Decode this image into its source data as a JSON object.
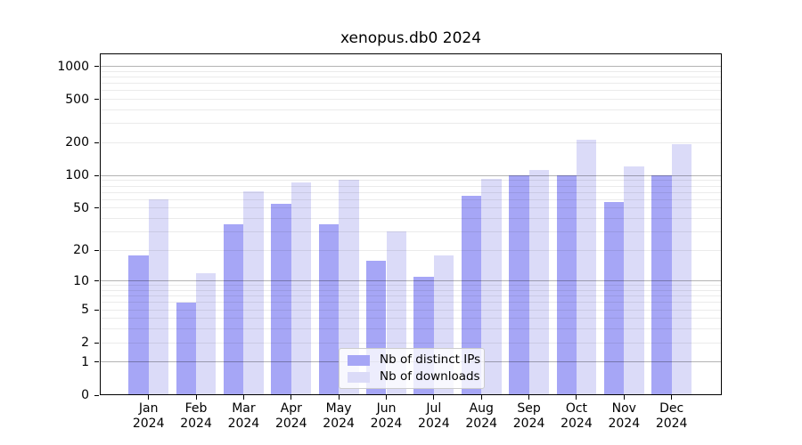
{
  "title": "xenopus.db0 2024",
  "colors": {
    "ips_bar": "#a6a6f6",
    "downloads_bar": "#dbdbf8",
    "grid_major": "#b3b3b3",
    "grid_minor": "#ebebeb",
    "axis": "#000000",
    "legend_border": "#cccccc"
  },
  "legend": {
    "items": [
      {
        "label": "Nb of distinct IPs",
        "series": "ips"
      },
      {
        "label": "Nb of downloads",
        "series": "downloads"
      }
    ]
  },
  "chart_data": {
    "type": "bar",
    "title": "xenopus.db0 2024",
    "categories": [
      "Jan",
      "Feb",
      "Mar",
      "Apr",
      "May",
      "Jun",
      "Jul",
      "Aug",
      "Sep",
      "Oct",
      "Nov",
      "Dec"
    ],
    "year_label": "2024",
    "series": [
      {
        "name": "Nb of distinct IPs",
        "values": [
          18,
          6,
          35,
          55,
          35,
          16,
          11,
          65,
          100,
          100,
          57,
          100
        ]
      },
      {
        "name": "Nb of downloads",
        "values": [
          60,
          12,
          72,
          86,
          92,
          30,
          18,
          93,
          113,
          215,
          121,
          193
        ]
      }
    ],
    "xlabel": "",
    "ylabel": "",
    "yscale": "log1p",
    "yticks": [
      0,
      1,
      2,
      5,
      10,
      20,
      50,
      100,
      200,
      500,
      1000
    ],
    "ylim": [
      0,
      1300
    ],
    "grid": true,
    "legend_position": "lower center"
  }
}
